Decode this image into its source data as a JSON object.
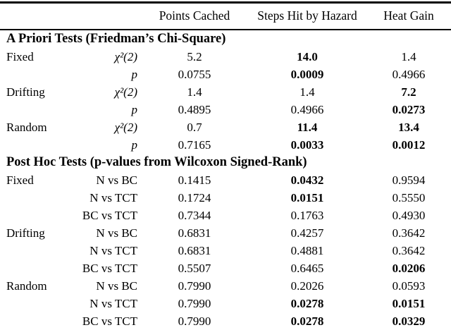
{
  "page": {
    "background_color": "#ffffff",
    "text_color": "#000000"
  },
  "table": {
    "column_headers": [
      "Points Cached",
      "Steps Hit by Hazard",
      "Heat Gain"
    ],
    "sections": [
      {
        "title": "A Priori Tests (Friedman’s Chi-Square)",
        "rows": [
          {
            "group": "Fixed",
            "test": "χ²(2)",
            "italic": true,
            "values": [
              "5.2",
              "14.0",
              "1.4"
            ],
            "bold": [
              false,
              true,
              false
            ]
          },
          {
            "group": "",
            "test": "p",
            "italic": true,
            "values": [
              "0.0755",
              "0.0009",
              "0.4966"
            ],
            "bold": [
              false,
              true,
              false
            ]
          },
          {
            "group": "Drifting",
            "test": "χ²(2)",
            "italic": true,
            "values": [
              "1.4",
              "1.4",
              "7.2"
            ],
            "bold": [
              false,
              false,
              true
            ]
          },
          {
            "group": "",
            "test": "p",
            "italic": true,
            "values": [
              "0.4895",
              "0.4966",
              "0.0273"
            ],
            "bold": [
              false,
              false,
              true
            ]
          },
          {
            "group": "Random",
            "test": "χ²(2)",
            "italic": true,
            "values": [
              "0.7",
              "11.4",
              "13.4"
            ],
            "bold": [
              false,
              true,
              true
            ]
          },
          {
            "group": "",
            "test": "p",
            "italic": true,
            "values": [
              "0.7165",
              "0.0033",
              "0.0012"
            ],
            "bold": [
              false,
              true,
              true
            ]
          }
        ]
      },
      {
        "title": "Post Hoc Tests (p-values from Wilcoxon Signed-Rank)",
        "rows": [
          {
            "group": "Fixed",
            "test": "N vs BC",
            "italic": false,
            "values": [
              "0.1415",
              "0.0432",
              "0.9594"
            ],
            "bold": [
              false,
              true,
              false
            ]
          },
          {
            "group": "",
            "test": "N vs TCT",
            "italic": false,
            "values": [
              "0.1724",
              "0.0151",
              "0.5550"
            ],
            "bold": [
              false,
              true,
              false
            ]
          },
          {
            "group": "",
            "test": "BC vs TCT",
            "italic": false,
            "values": [
              "0.7344",
              "0.1763",
              "0.4930"
            ],
            "bold": [
              false,
              false,
              false
            ]
          },
          {
            "group": "Drifting",
            "test": "N vs BC",
            "italic": false,
            "values": [
              "0.6831",
              "0.4257",
              "0.3642"
            ],
            "bold": [
              false,
              false,
              false
            ]
          },
          {
            "group": "",
            "test": "N vs TCT",
            "italic": false,
            "values": [
              "0.6831",
              "0.4881",
              "0.3642"
            ],
            "bold": [
              false,
              false,
              false
            ]
          },
          {
            "group": "",
            "test": "BC vs TCT",
            "italic": false,
            "values": [
              "0.5507",
              "0.6465",
              "0.0206"
            ],
            "bold": [
              false,
              false,
              true
            ]
          },
          {
            "group": "Random",
            "test": "N vs BC",
            "italic": false,
            "values": [
              "0.7990",
              "0.2026",
              "0.0593"
            ],
            "bold": [
              false,
              false,
              false
            ]
          },
          {
            "group": "",
            "test": "N vs TCT",
            "italic": false,
            "values": [
              "0.7990",
              "0.0278",
              "0.0151"
            ],
            "bold": [
              false,
              true,
              true
            ]
          },
          {
            "group": "",
            "test": "BC vs TCT",
            "italic": false,
            "values": [
              "0.7990",
              "0.0278",
              "0.0329"
            ],
            "bold": [
              false,
              true,
              true
            ]
          }
        ]
      }
    ]
  }
}
